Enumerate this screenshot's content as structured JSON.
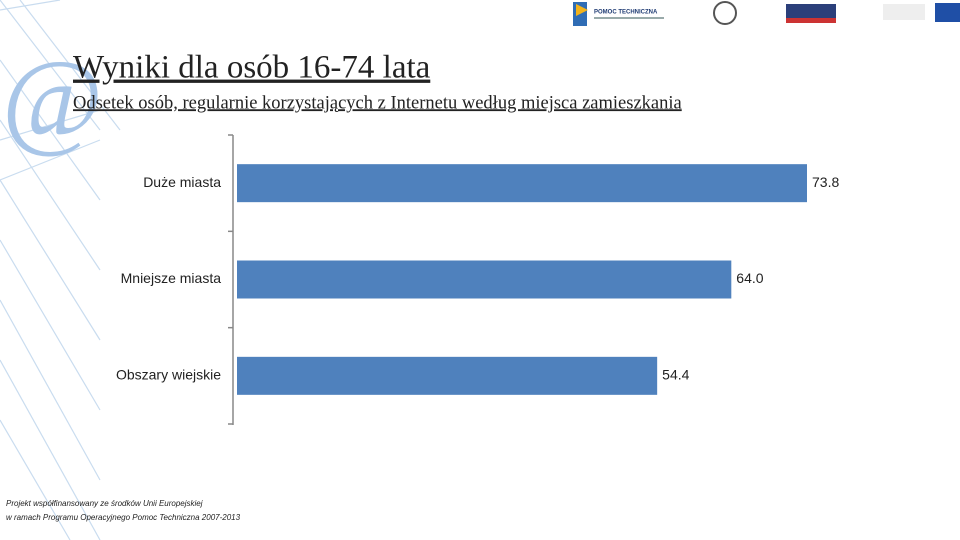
{
  "header": {
    "logo_text": "POMOC TECHNICZNA",
    "watermark": "@"
  },
  "chart_data": {
    "type": "bar",
    "orientation": "horizontal",
    "title": "Wyniki dla osób 16-74 lata",
    "subtitle": "Odsetek osób, regularnie korzystających z Internetu według miejsca zamieszkania",
    "categories": [
      "Duże miasta",
      "Mniejsze miasta",
      "Obszary wiejskie"
    ],
    "values": [
      73.8,
      64.0,
      54.4
    ],
    "value_labels": [
      "73.8",
      "64.0",
      "54.4"
    ],
    "color": "#4f81bd"
  },
  "footer": [
    "Projekt współfinansowany ze środków Unii Europejskiej",
    "w ramach Programu Operacyjnego Pomoc Techniczna 2007-2013"
  ]
}
